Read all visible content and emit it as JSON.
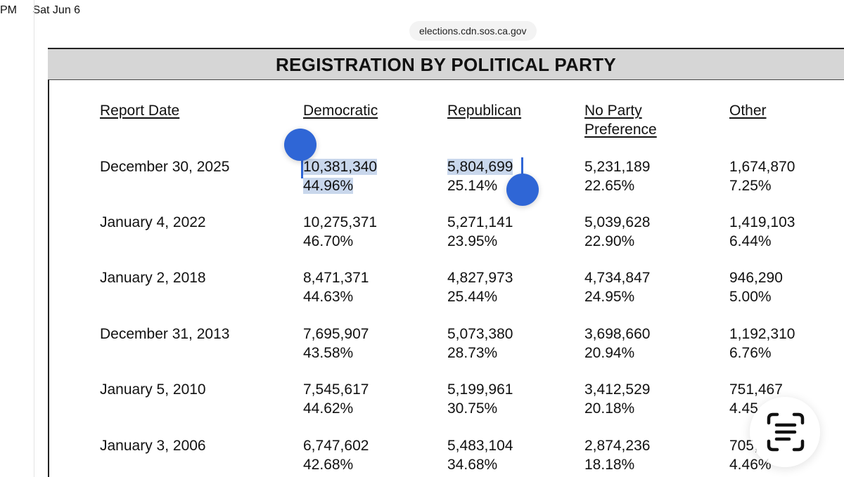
{
  "status_bar": {
    "time": "PM",
    "date": "Sat Jun 6"
  },
  "browser": {
    "url": "elections.cdn.sos.ca.gov"
  },
  "header": {
    "title": "REGISTRATION BY POLITICAL PARTY"
  },
  "columns": {
    "report_date": "Report Date",
    "democratic": "Democratic",
    "republican": "Republican",
    "npp_line1": "No Party",
    "npp_line2": "Preference",
    "other": "Other"
  },
  "rows": [
    {
      "date": "December 30, 2025",
      "dem": {
        "count": "10,381,340",
        "pct": "44.96%"
      },
      "rep": {
        "count": "5,804,699",
        "pct": "25.14%"
      },
      "npp": {
        "count": "5,231,189",
        "pct": "22.65%"
      },
      "other": {
        "count": "1,674,870",
        "pct": "7.25%"
      }
    },
    {
      "date": "January 4, 2022",
      "dem": {
        "count": "10,275,371",
        "pct": "46.70%"
      },
      "rep": {
        "count": "5,271,141",
        "pct": "23.95%"
      },
      "npp": {
        "count": "5,039,628",
        "pct": "22.90%"
      },
      "other": {
        "count": "1,419,103",
        "pct": "6.44%"
      }
    },
    {
      "date": "January 2, 2018",
      "dem": {
        "count": "8,471,371",
        "pct": "44.63%"
      },
      "rep": {
        "count": "4,827,973",
        "pct": "25.44%"
      },
      "npp": {
        "count": "4,734,847",
        "pct": "24.95%"
      },
      "other": {
        "count": "946,290",
        "pct": "5.00%"
      }
    },
    {
      "date": "December 31, 2013",
      "dem": {
        "count": "7,695,907",
        "pct": "43.58%"
      },
      "rep": {
        "count": "5,073,380",
        "pct": "28.73%"
      },
      "npp": {
        "count": "3,698,660",
        "pct": "20.94%"
      },
      "other": {
        "count": "1,192,310",
        "pct": "6.76%"
      }
    },
    {
      "date": "January 5, 2010",
      "dem": {
        "count": "7,545,617",
        "pct": "44.62%"
      },
      "rep": {
        "count": "5,199,961",
        "pct": "30.75%"
      },
      "npp": {
        "count": "3,412,529",
        "pct": "20.18%"
      },
      "other": {
        "count": "751,467",
        "pct": "4.45"
      }
    },
    {
      "date": "January 3, 2006",
      "dem": {
        "count": "6,747,602",
        "pct": "42.68%"
      },
      "rep": {
        "count": "5,483,104",
        "pct": "34.68%"
      },
      "npp": {
        "count": "2,874,236",
        "pct": "18.18%"
      },
      "other": {
        "count": "705,",
        "pct": "4.46%"
      }
    }
  ],
  "icons": {
    "live_text": "live-text-scan-icon",
    "selection_handle": "selection-handle"
  },
  "colors": {
    "selection": "#c9d7ec",
    "handle": "#2f66d6",
    "header_band": "#d6d6d6"
  }
}
